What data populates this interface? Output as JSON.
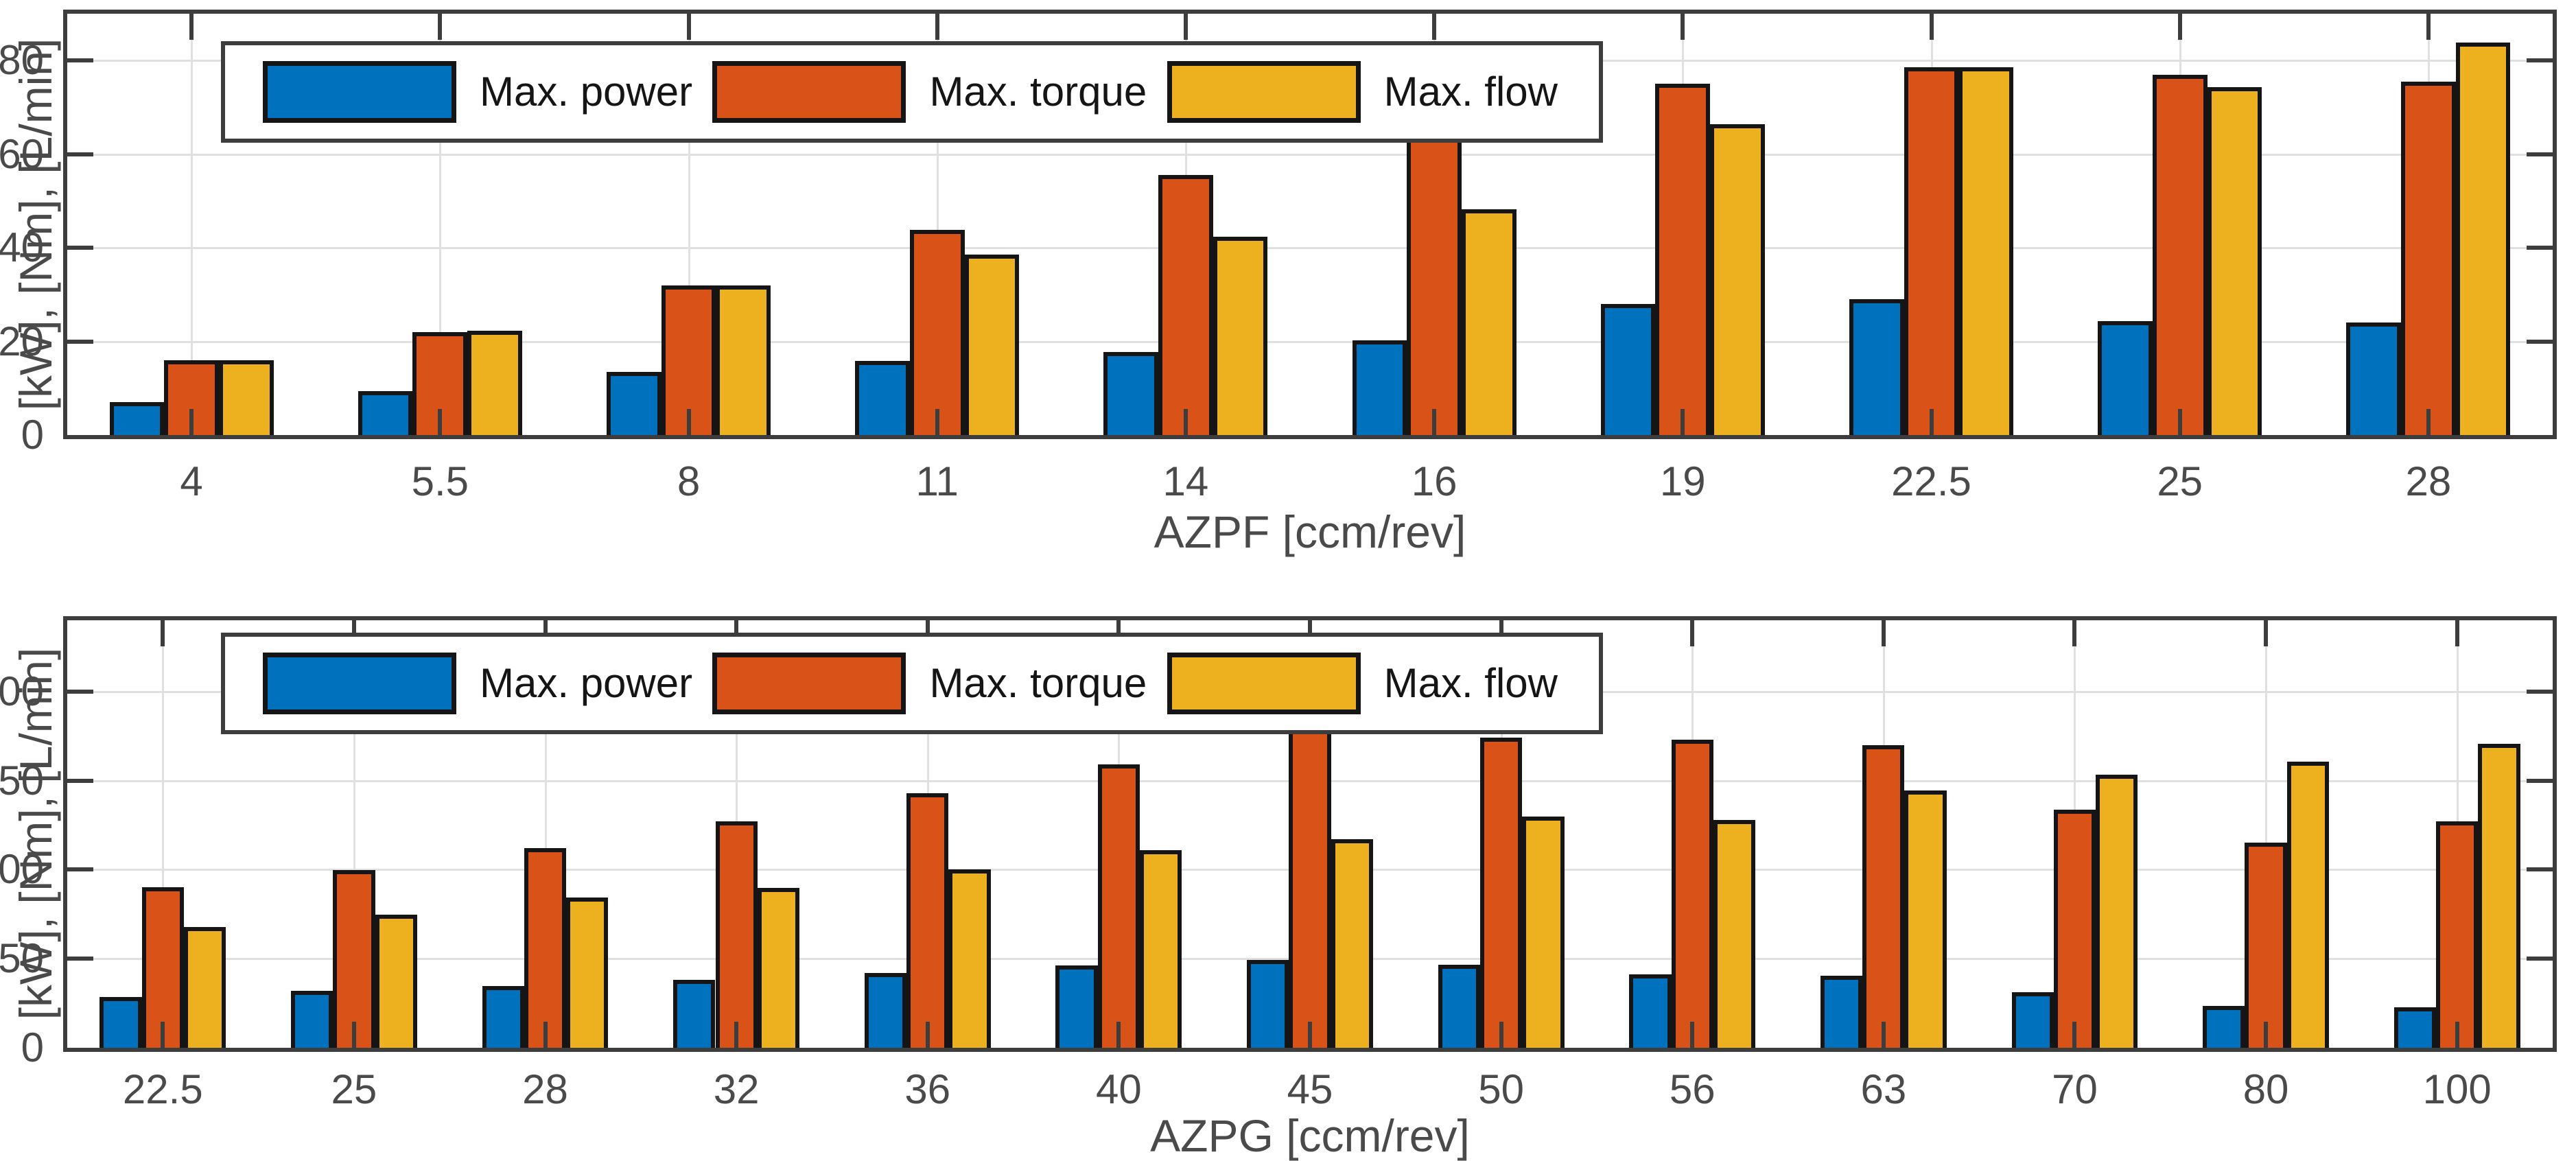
{
  "figure": {
    "background": "#ffffff"
  },
  "colors": {
    "power": "#0072BD",
    "torque": "#D95319",
    "flow": "#EDB120",
    "bar_edge": "#151515",
    "axis": "#3d3d3d",
    "grid": "#e0e0e0",
    "tick_text": "#4a4a4a",
    "legend_text": "#151515"
  },
  "chart_data": [
    {
      "type": "bar",
      "title": "",
      "xlabel": "AZPF [ccm/rev]",
      "ylabel": "[kW], [Nm], [L/min]",
      "categories": [
        "4",
        "5.5",
        "8",
        "11",
        "14",
        "16",
        "19",
        "22.5",
        "25",
        "28"
      ],
      "series": [
        {
          "name": "Max. power",
          "color_key": "power",
          "values": [
            7,
            9.4,
            13.5,
            15.8,
            17.7,
            20.3,
            28,
            29,
            24.4,
            24
          ]
        },
        {
          "name": "Max. torque",
          "color_key": "torque",
          "values": [
            16,
            22,
            32,
            43.8,
            55.5,
            63.4,
            75,
            78.5,
            77,
            75.5
          ]
        },
        {
          "name": "Max. flow",
          "color_key": "flow",
          "values": [
            16,
            22.3,
            32,
            38.5,
            42.3,
            48.2,
            66.4,
            78.5,
            74.3,
            83.8
          ]
        }
      ],
      "ylim": [
        0,
        90
      ],
      "yticks": [
        0,
        20,
        40,
        60,
        80
      ],
      "grid": true,
      "legend_position": "top-left"
    },
    {
      "type": "bar",
      "title": "",
      "xlabel": "AZPG [ccm/rev]",
      "ylabel": "[kW], [Nm], [L/min]",
      "categories": [
        "22.5",
        "25",
        "28",
        "32",
        "36",
        "40",
        "45",
        "50",
        "56",
        "63",
        "70",
        "80",
        "100"
      ],
      "series": [
        {
          "name": "Max. power",
          "color_key": "power",
          "values": [
            28.7,
            31.9,
            34.8,
            38,
            42,
            46.2,
            49.3,
            46.8,
            41.3,
            40.5,
            31.4,
            23.6,
            22.7
          ]
        },
        {
          "name": "Max. torque",
          "color_key": "torque",
          "values": [
            90,
            99.8,
            112,
            127,
            143,
            159,
            179,
            174,
            173,
            170,
            133.5,
            115,
            127
          ]
        },
        {
          "name": "Max. flow",
          "color_key": "flow",
          "values": [
            67.8,
            74.6,
            84.5,
            89.7,
            100,
            111,
            117,
            130,
            128,
            144.6,
            153.5,
            160.5,
            170.5
          ]
        }
      ],
      "ylim": [
        0,
        240
      ],
      "yticks": [
        0,
        50,
        100,
        150,
        200
      ],
      "grid": true,
      "legend_position": "top-left"
    }
  ]
}
